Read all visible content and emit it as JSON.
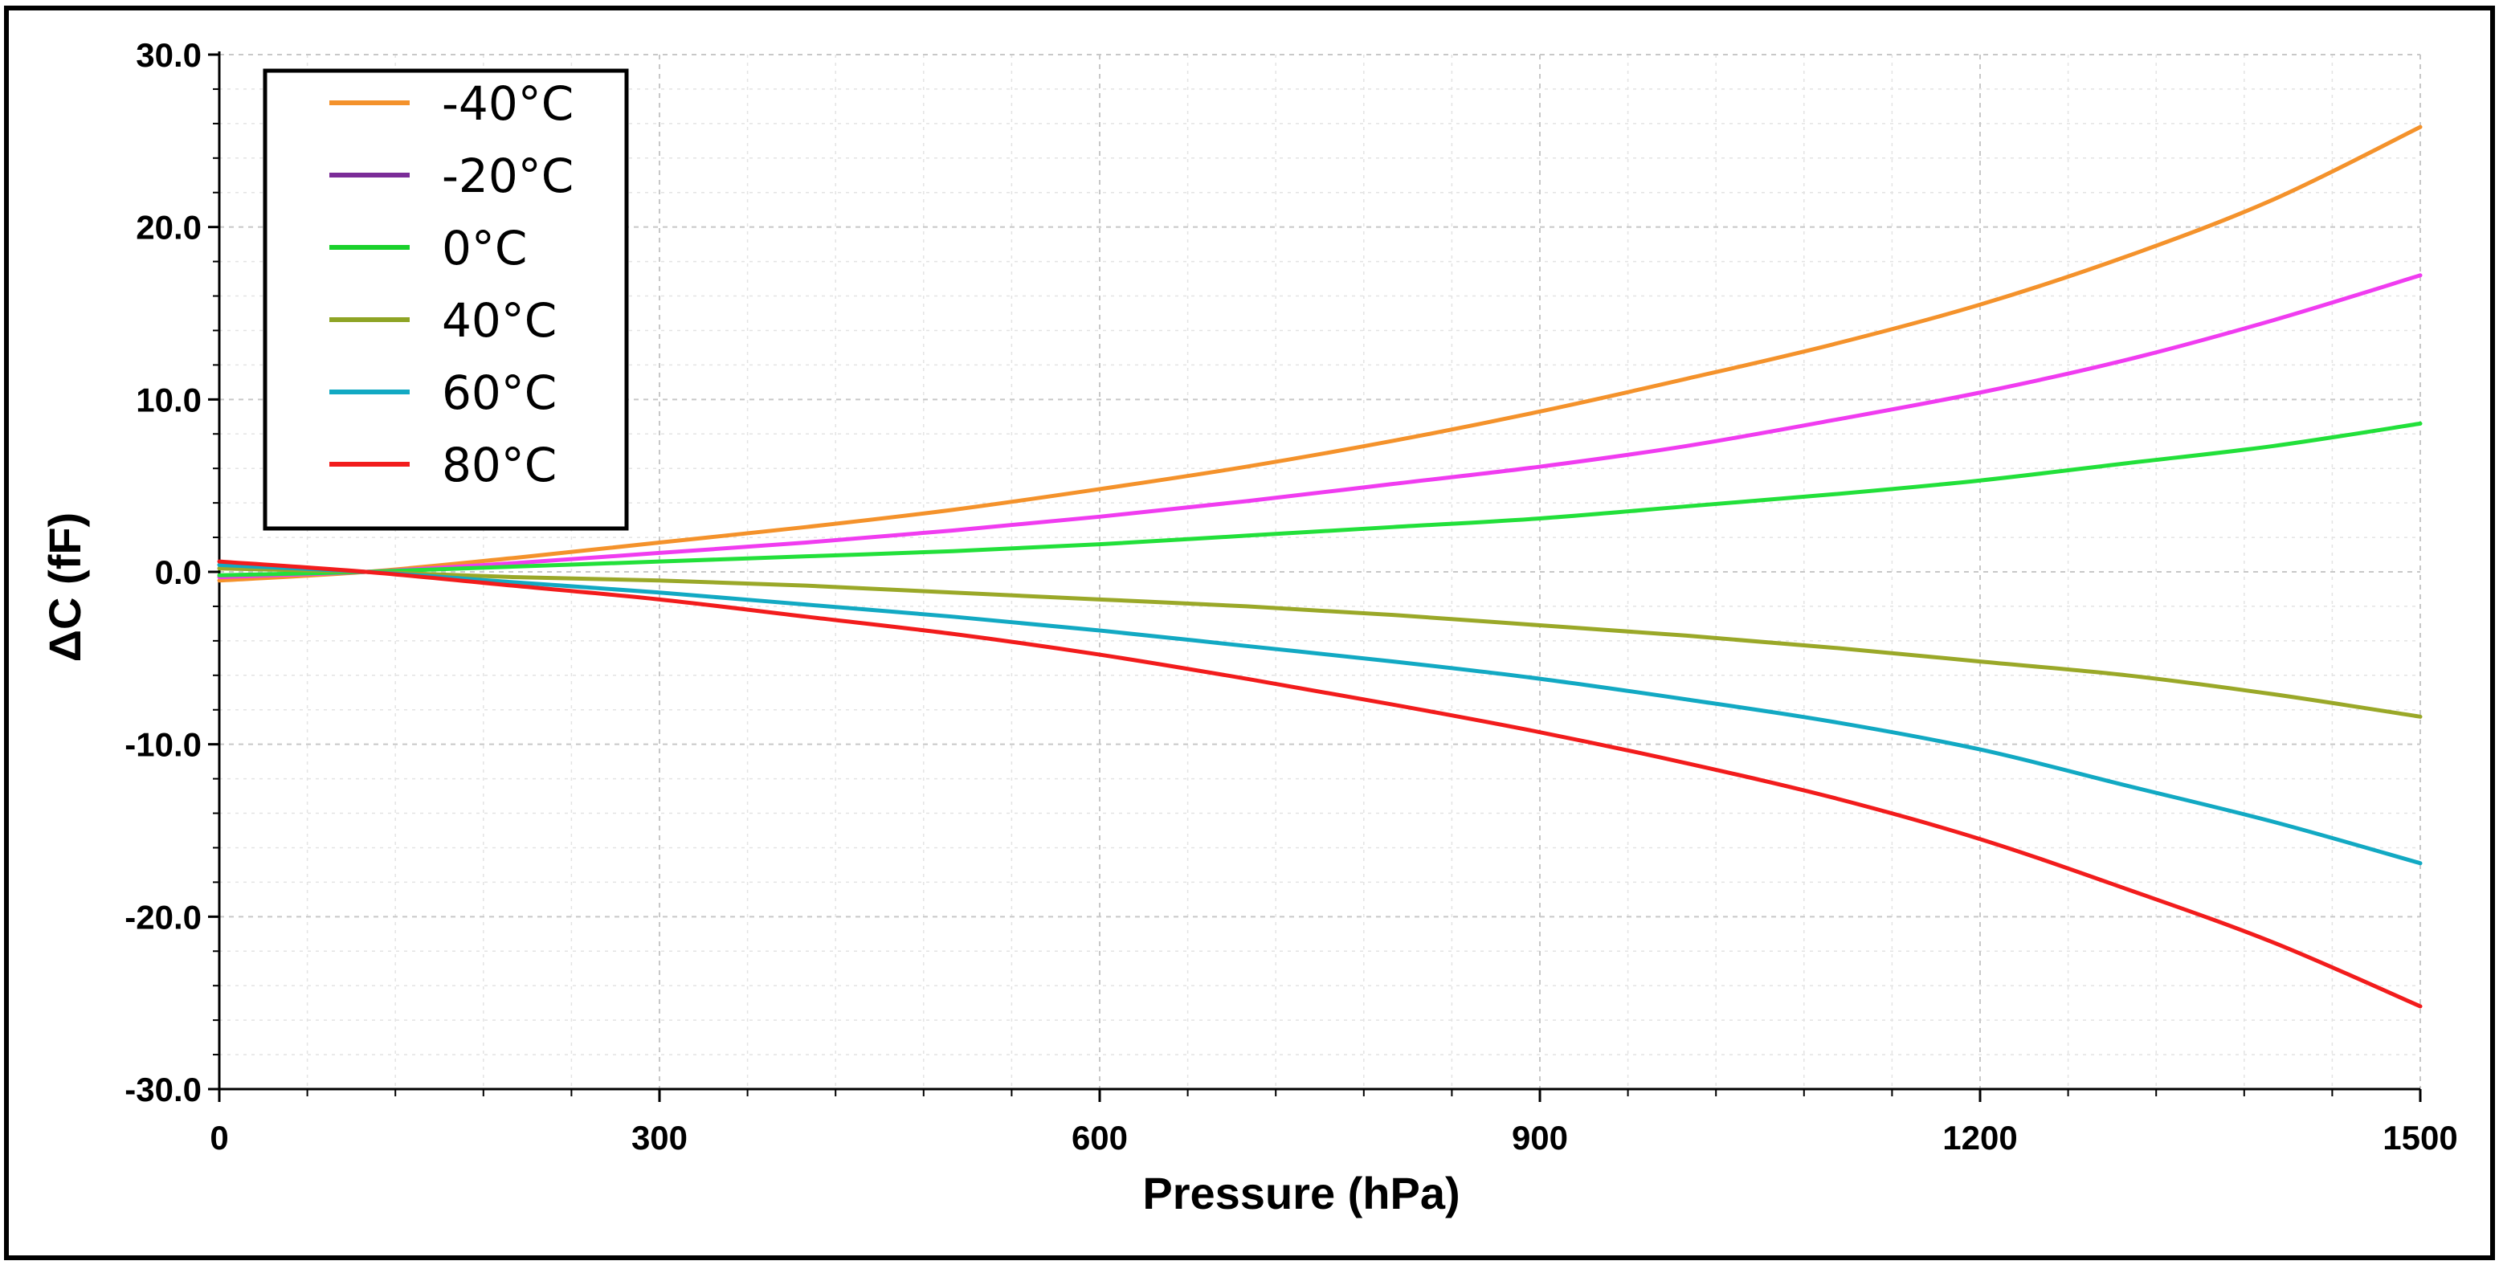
{
  "chart_data": {
    "type": "line",
    "title": "",
    "xlabel": "Pressure (hPa)",
    "ylabel": "ΔC (fF)",
    "xlim": [
      0,
      1500
    ],
    "ylim": [
      -30,
      30
    ],
    "xticks": [
      0,
      300,
      600,
      900,
      1200,
      1500
    ],
    "xtick_labels": [
      "0",
      "300",
      "600",
      "900",
      "1200",
      "1500"
    ],
    "yticks": [
      30,
      20,
      10,
      0,
      -10,
      -20,
      -30
    ],
    "ytick_labels": [
      "30.0",
      "20.0",
      "10.0",
      "0.0",
      "-10.0",
      "-20.0",
      "-30.0"
    ],
    "grid": true,
    "legend_position": "top-left",
    "x": [
      0,
      100,
      200,
      300,
      400,
      500,
      600,
      700,
      800,
      900,
      1000,
      1100,
      1200,
      1300,
      1400,
      1500
    ],
    "series": [
      {
        "name": "-40°C",
        "legend_color": "#f4922b",
        "line_color": "#f4922b",
        "values": [
          -0.5,
          0.0,
          0.8,
          1.7,
          2.6,
          3.6,
          4.8,
          6.1,
          7.6,
          9.3,
          11.2,
          13.2,
          15.5,
          18.3,
          21.6,
          25.8
        ]
      },
      {
        "name": "-20°C",
        "legend_color": "#7b2c98",
        "line_color": "#f03cf0",
        "values": [
          -0.3,
          0.0,
          0.5,
          1.1,
          1.7,
          2.4,
          3.2,
          4.1,
          5.1,
          6.1,
          7.3,
          8.8,
          10.4,
          12.3,
          14.6,
          17.2
        ]
      },
      {
        "name": "0°C",
        "legend_color": "#19d12b",
        "line_color": "#22e03a",
        "values": [
          -0.2,
          0.0,
          0.3,
          0.6,
          0.9,
          1.2,
          1.6,
          2.1,
          2.6,
          3.1,
          3.8,
          4.5,
          5.3,
          6.3,
          7.3,
          8.6
        ]
      },
      {
        "name": "40°C",
        "legend_color": "#8ea425",
        "line_color": "#9aa828",
        "values": [
          0.2,
          0.0,
          -0.3,
          -0.5,
          -0.8,
          -1.2,
          -1.6,
          -2.0,
          -2.5,
          -3.1,
          -3.7,
          -4.4,
          -5.2,
          -6.0,
          -7.1,
          -8.4
        ]
      },
      {
        "name": "60°C",
        "legend_color": "#12a9c3",
        "line_color": "#12a9c3",
        "values": [
          0.4,
          0.0,
          -0.6,
          -1.2,
          -1.9,
          -2.6,
          -3.4,
          -4.3,
          -5.2,
          -6.2,
          -7.4,
          -8.7,
          -10.3,
          -12.4,
          -14.5,
          -16.9
        ]
      },
      {
        "name": "80°C",
        "legend_color": "#f21c1c",
        "line_color": "#f21c1c",
        "values": [
          0.6,
          0.0,
          -0.8,
          -1.6,
          -2.6,
          -3.6,
          -4.8,
          -6.2,
          -7.7,
          -9.3,
          -11.1,
          -13.1,
          -15.5,
          -18.4,
          -21.5,
          -25.2
        ]
      }
    ]
  }
}
